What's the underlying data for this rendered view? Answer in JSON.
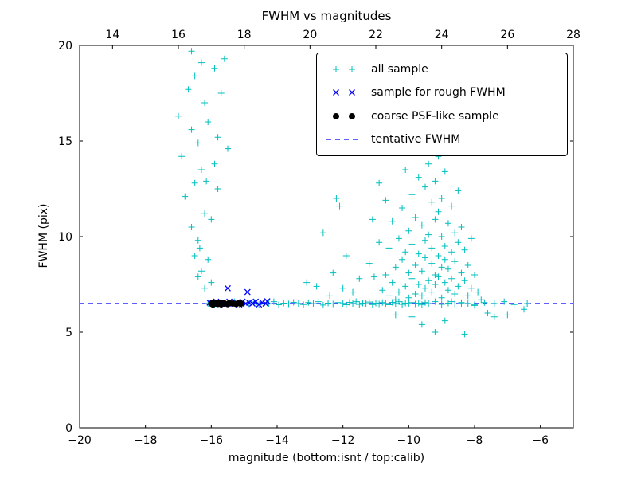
{
  "chart_data": {
    "type": "scatter",
    "title": "FWHM vs magnitudes",
    "xlabel": "magnitude (bottom:isnt / top:calib)",
    "ylabel": "FWHM (pix)",
    "xlim": [
      -20,
      -5
    ],
    "top_xlim": [
      13,
      28
    ],
    "ylim": [
      0,
      20
    ],
    "x_ticks": [
      -20,
      -18,
      -16,
      -14,
      -12,
      -10,
      -8,
      -6
    ],
    "top_ticks": [
      14,
      16,
      18,
      20,
      22,
      24,
      26,
      28
    ],
    "y_ticks": [
      0,
      5,
      10,
      15,
      20
    ],
    "grid": false,
    "legend_position": "upper right",
    "series": [
      {
        "name": "all sample",
        "marker": "plus",
        "color": "#00bfbf",
        "points": [
          [
            -16.1,
            6.5
          ],
          [
            -15.9,
            6.45
          ],
          [
            -15.7,
            6.55
          ],
          [
            -15.5,
            6.5
          ],
          [
            -15.3,
            6.6
          ],
          [
            -15.15,
            6.42
          ],
          [
            -15.0,
            6.52
          ],
          [
            -14.85,
            6.48
          ],
          [
            -14.7,
            6.58
          ],
          [
            -14.55,
            6.45
          ],
          [
            -14.4,
            6.52
          ],
          [
            -14.25,
            6.5
          ],
          [
            -14.1,
            6.6
          ],
          [
            -13.95,
            6.44
          ],
          [
            -13.8,
            6.52
          ],
          [
            -13.65,
            6.48
          ],
          [
            -13.5,
            6.56
          ],
          [
            -13.35,
            6.5
          ],
          [
            -13.2,
            6.45
          ],
          [
            -13.05,
            6.55
          ],
          [
            -12.9,
            6.5
          ],
          [
            -12.75,
            6.6
          ],
          [
            -12.6,
            6.42
          ],
          [
            -12.45,
            6.52
          ],
          [
            -12.3,
            6.48
          ],
          [
            -12.15,
            6.55
          ],
          [
            -12.0,
            6.5
          ],
          [
            -11.9,
            6.44
          ],
          [
            -11.8,
            6.56
          ],
          [
            -11.7,
            6.5
          ],
          [
            -11.6,
            6.6
          ],
          [
            -11.5,
            6.46
          ],
          [
            -11.4,
            6.52
          ],
          [
            -11.3,
            6.5
          ],
          [
            -11.2,
            6.58
          ],
          [
            -11.1,
            6.45
          ],
          [
            -11.0,
            6.52
          ],
          [
            -10.9,
            6.48
          ],
          [
            -10.8,
            6.55
          ],
          [
            -10.7,
            6.5
          ],
          [
            -10.6,
            6.44
          ],
          [
            -10.5,
            6.56
          ],
          [
            -10.4,
            6.5
          ],
          [
            -10.3,
            6.6
          ],
          [
            -10.2,
            6.46
          ],
          [
            -10.1,
            6.52
          ],
          [
            -10.0,
            6.5
          ],
          [
            -9.9,
            6.55
          ],
          [
            -9.8,
            6.48
          ],
          [
            -9.7,
            6.52
          ],
          [
            -9.6,
            6.45
          ],
          [
            -9.5,
            6.55
          ],
          [
            -9.4,
            6.5
          ],
          [
            -9.2,
            6.6
          ],
          [
            -9.0,
            6.46
          ],
          [
            -8.8,
            6.52
          ],
          [
            -8.6,
            6.48
          ],
          [
            -8.4,
            6.55
          ],
          [
            -8.2,
            6.5
          ],
          [
            -8.0,
            6.45
          ],
          [
            -7.7,
            6.55
          ],
          [
            -7.4,
            6.5
          ],
          [
            -7.1,
            6.6
          ],
          [
            -6.8,
            6.45
          ],
          [
            -6.4,
            6.5
          ],
          [
            -16.3,
            8.2
          ],
          [
            -16.5,
            9.0
          ],
          [
            -16.4,
            9.8
          ],
          [
            -16.6,
            10.5
          ],
          [
            -16.2,
            11.2
          ],
          [
            -16.8,
            12.1
          ],
          [
            -16.5,
            12.8
          ],
          [
            -16.3,
            13.5
          ],
          [
            -16.9,
            14.2
          ],
          [
            -16.4,
            14.9
          ],
          [
            -16.6,
            15.6
          ],
          [
            -17.0,
            16.3
          ],
          [
            -16.2,
            17.0
          ],
          [
            -16.7,
            17.7
          ],
          [
            -16.5,
            18.4
          ],
          [
            -16.3,
            19.1
          ],
          [
            -16.6,
            19.7
          ],
          [
            -16.1,
            8.8
          ],
          [
            -16.0,
            7.6
          ],
          [
            -16.2,
            7.3
          ],
          [
            -16.4,
            7.9
          ],
          [
            -15.8,
            12.5
          ],
          [
            -15.9,
            13.8
          ],
          [
            -15.7,
            17.5
          ],
          [
            -15.6,
            19.3
          ],
          [
            -15.5,
            14.6
          ],
          [
            -15.9,
            18.8
          ],
          [
            -16.1,
            16.0
          ],
          [
            -15.8,
            15.2
          ],
          [
            -16.0,
            10.9
          ],
          [
            -16.35,
            9.4
          ],
          [
            -16.15,
            12.9
          ],
          [
            -13.1,
            7.6
          ],
          [
            -12.8,
            7.4
          ],
          [
            -12.6,
            10.2
          ],
          [
            -12.3,
            8.1
          ],
          [
            -12.2,
            12.0
          ],
          [
            -12.1,
            11.6
          ],
          [
            -12.0,
            7.3
          ],
          [
            -11.9,
            9.0
          ],
          [
            -11.7,
            7.1
          ],
          [
            -11.5,
            7.8
          ],
          [
            -11.2,
            8.6
          ],
          [
            -12.4,
            6.9
          ],
          [
            -10.8,
            7.2
          ],
          [
            -10.7,
            8.0
          ],
          [
            -10.6,
            6.9
          ],
          [
            -10.6,
            9.4
          ],
          [
            -10.5,
            7.6
          ],
          [
            -10.5,
            10.8
          ],
          [
            -10.4,
            8.4
          ],
          [
            -10.4,
            6.7
          ],
          [
            -10.3,
            9.9
          ],
          [
            -10.3,
            7.1
          ],
          [
            -10.2,
            8.8
          ],
          [
            -10.2,
            11.5
          ],
          [
            -10.1,
            7.4
          ],
          [
            -10.1,
            9.2
          ],
          [
            -10.0,
            8.1
          ],
          [
            -10.0,
            10.3
          ],
          [
            -10.0,
            6.8
          ],
          [
            -9.9,
            7.8
          ],
          [
            -9.9,
            9.6
          ],
          [
            -9.9,
            12.2
          ],
          [
            -9.8,
            8.5
          ],
          [
            -9.8,
            7.0
          ],
          [
            -9.8,
            11.0
          ],
          [
            -9.7,
            9.1
          ],
          [
            -9.7,
            7.5
          ],
          [
            -9.7,
            13.1
          ],
          [
            -9.6,
            8.2
          ],
          [
            -9.6,
            10.6
          ],
          [
            -9.6,
            6.9
          ],
          [
            -9.5,
            9.8
          ],
          [
            -9.5,
            7.3
          ],
          [
            -9.5,
            12.6
          ],
          [
            -9.5,
            8.9
          ],
          [
            -9.4,
            7.7
          ],
          [
            -9.4,
            10.1
          ],
          [
            -9.4,
            13.8
          ],
          [
            -9.3,
            8.6
          ],
          [
            -9.3,
            7.1
          ],
          [
            -9.3,
            11.8
          ],
          [
            -9.3,
            9.4
          ],
          [
            -9.2,
            8.0
          ],
          [
            -9.2,
            12.9
          ],
          [
            -9.2,
            7.5
          ],
          [
            -9.2,
            10.9
          ],
          [
            -9.1,
            9.0
          ],
          [
            -9.1,
            7.9
          ],
          [
            -9.1,
            14.2
          ],
          [
            -9.1,
            11.3
          ],
          [
            -9.0,
            8.4
          ],
          [
            -9.0,
            6.8
          ],
          [
            -9.0,
            10.0
          ],
          [
            -9.0,
            12.0
          ],
          [
            -8.9,
            7.6
          ],
          [
            -8.9,
            9.5
          ],
          [
            -8.9,
            8.8
          ],
          [
            -8.9,
            13.4
          ],
          [
            -8.8,
            7.2
          ],
          [
            -8.8,
            10.7
          ],
          [
            -8.8,
            8.3
          ],
          [
            -8.7,
            9.2
          ],
          [
            -8.7,
            6.6
          ],
          [
            -8.7,
            11.6
          ],
          [
            -8.7,
            7.8
          ],
          [
            -8.6,
            8.7
          ],
          [
            -8.6,
            10.2
          ],
          [
            -8.6,
            7.0
          ],
          [
            -8.5,
            9.7
          ],
          [
            -8.5,
            7.4
          ],
          [
            -8.5,
            12.4
          ],
          [
            -8.4,
            8.1
          ],
          [
            -8.4,
            6.5
          ],
          [
            -8.4,
            10.5
          ],
          [
            -8.3,
            7.7
          ],
          [
            -8.3,
            9.3
          ],
          [
            -8.2,
            8.5
          ],
          [
            -8.2,
            6.9
          ],
          [
            -8.1,
            7.3
          ],
          [
            -8.1,
            9.9
          ],
          [
            -8.0,
            8.0
          ],
          [
            -8.0,
            6.4
          ],
          [
            -7.9,
            7.1
          ],
          [
            -7.8,
            6.7
          ],
          [
            -7.6,
            6.0
          ],
          [
            -7.4,
            5.8
          ],
          [
            -9.6,
            5.4
          ],
          [
            -9.2,
            5.0
          ],
          [
            -8.9,
            5.6
          ],
          [
            -9.9,
            5.8
          ],
          [
            -10.4,
            5.9
          ],
          [
            -8.3,
            4.9
          ],
          [
            -7.0,
            5.9
          ],
          [
            -6.5,
            6.2
          ],
          [
            -11.0,
            14.5
          ],
          [
            -10.1,
            13.5
          ],
          [
            -9.0,
            14.4
          ],
          [
            -10.9,
            12.8
          ],
          [
            -10.7,
            11.9
          ],
          [
            -10.9,
            9.7
          ],
          [
            -11.1,
            10.9
          ],
          [
            -11.05,
            7.9
          ]
        ]
      },
      {
        "name": "sample for rough FWHM",
        "marker": "x",
        "color": "#0000ff",
        "points": [
          [
            -16.05,
            6.55
          ],
          [
            -15.95,
            6.5
          ],
          [
            -15.85,
            6.6
          ],
          [
            -15.75,
            6.45
          ],
          [
            -15.65,
            6.55
          ],
          [
            -15.55,
            6.5
          ],
          [
            -15.5,
            7.3
          ],
          [
            -15.45,
            6.6
          ],
          [
            -15.35,
            6.5
          ],
          [
            -15.25,
            6.55
          ],
          [
            -15.15,
            6.45
          ],
          [
            -15.05,
            6.6
          ],
          [
            -14.95,
            6.5
          ],
          [
            -14.9,
            7.1
          ],
          [
            -14.85,
            6.55
          ],
          [
            -14.75,
            6.5
          ],
          [
            -14.65,
            6.6
          ],
          [
            -14.55,
            6.45
          ],
          [
            -14.45,
            6.55
          ],
          [
            -14.35,
            6.5
          ],
          [
            -14.3,
            6.62
          ]
        ]
      },
      {
        "name": "coarse PSF-like sample",
        "marker": "circle",
        "color": "#000000",
        "points": [
          [
            -16.0,
            6.5
          ],
          [
            -15.95,
            6.45
          ],
          [
            -15.9,
            6.55
          ],
          [
            -15.85,
            6.5
          ],
          [
            -15.8,
            6.48
          ],
          [
            -15.75,
            6.52
          ],
          [
            -15.7,
            6.46
          ],
          [
            -15.65,
            6.54
          ],
          [
            -15.6,
            6.5
          ],
          [
            -15.5,
            6.47
          ],
          [
            -15.45,
            6.53
          ],
          [
            -15.35,
            6.5
          ],
          [
            -15.25,
            6.48
          ],
          [
            -15.15,
            6.52
          ],
          [
            -15.1,
            6.5
          ]
        ]
      },
      {
        "name": "tentative FWHM",
        "marker": "dashed-line",
        "color": "#0000ff",
        "y": 6.5
      }
    ]
  }
}
